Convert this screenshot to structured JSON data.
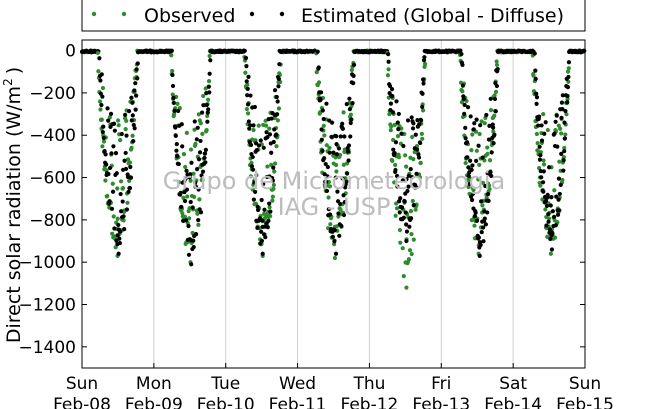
{
  "chart_data": {
    "type": "scatter",
    "title": "",
    "ylabel_text": "Direct solar radiation (W/m",
    "ylabel_sup": "2",
    "ylabel_close": ")",
    "ylim": [
      -1500,
      50
    ],
    "yticks": [
      0,
      -200,
      -400,
      -600,
      -800,
      -1000,
      -1200,
      -1400
    ],
    "xlim": [
      0,
      7
    ],
    "xticks": [
      {
        "pos": 0,
        "day": "Sun",
        "date": "Feb-08"
      },
      {
        "pos": 1,
        "day": "Mon",
        "date": "Feb-09"
      },
      {
        "pos": 2,
        "day": "Tue",
        "date": "Feb-10"
      },
      {
        "pos": 3,
        "day": "Wed",
        "date": "Feb-11"
      },
      {
        "pos": 4,
        "day": "Thu",
        "date": "Feb-12"
      },
      {
        "pos": 5,
        "day": "Fri",
        "date": "Feb-13"
      },
      {
        "pos": 6,
        "day": "Sat",
        "date": "Feb-14"
      },
      {
        "pos": 7,
        "day": "Sun",
        "date": "Feb-15"
      }
    ],
    "grid": "vertical",
    "legend_position": "top",
    "watermark": [
      "Grupo de Micrometeorologia",
      "IAG - USP"
    ],
    "series": [
      {
        "name": "Observed",
        "color": "#2e8b2e",
        "days": [
          {
            "day": 0,
            "start": 0.22,
            "end": 0.77,
            "min": -970
          },
          {
            "day": 1,
            "start": 0.24,
            "end": 0.78,
            "min": -1000
          },
          {
            "day": 2,
            "start": 0.26,
            "end": 0.77,
            "min": -970
          },
          {
            "day": 3,
            "start": 0.26,
            "end": 0.78,
            "min": -980
          },
          {
            "day": 4,
            "start": 0.25,
            "end": 0.78,
            "min": -1120
          },
          {
            "day": 5,
            "start": 0.26,
            "end": 0.78,
            "min": -960
          },
          {
            "day": 6,
            "start": 0.27,
            "end": 0.78,
            "min": -960
          }
        ]
      },
      {
        "name": "Estimated (Global - Diffuse)",
        "color": "#000000",
        "days": [
          {
            "day": 0,
            "start": 0.24,
            "end": 0.78,
            "min": -960
          },
          {
            "day": 1,
            "start": 0.25,
            "end": 0.79,
            "min": -1010
          },
          {
            "day": 2,
            "start": 0.28,
            "end": 0.75,
            "min": -960
          },
          {
            "day": 3,
            "start": 0.28,
            "end": 0.79,
            "min": -960
          },
          {
            "day": 4,
            "start": 0.26,
            "end": 0.77,
            "min": -900
          },
          {
            "day": 5,
            "start": 0.28,
            "end": 0.79,
            "min": -970
          },
          {
            "day": 6,
            "start": 0.3,
            "end": 0.78,
            "min": -940
          }
        ]
      }
    ]
  }
}
